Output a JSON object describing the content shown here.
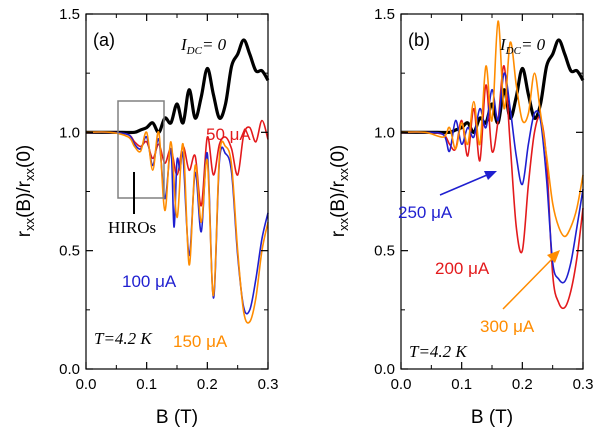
{
  "chart_data": [
    {
      "panel": "(a)",
      "type": "line",
      "xlabel": "B (T)",
      "ylabel": "r_xx(B)/r_xx(0)",
      "xlim": [
        0.0,
        0.3
      ],
      "ylim": [
        0.0,
        1.5
      ],
      "xticks": [
        "0.0",
        "0.1",
        "0.2",
        "0.3"
      ],
      "yticks": [
        "0.0",
        "0.5",
        "1.0",
        "1.5"
      ],
      "annotations": {
        "idc": "I",
        "idc_sub": "DC",
        "idc_rest": "= 0",
        "temp": "T=4.2 K",
        "hiros": "HIROs",
        "i50": "50 μA",
        "i100": "100 μA",
        "i150": "150 μA"
      },
      "series": [
        {
          "name": "I_DC = 0",
          "color": "#000000",
          "x": [
            0.0,
            0.02,
            0.04,
            0.06,
            0.08,
            0.09,
            0.1,
            0.11,
            0.12,
            0.13,
            0.14,
            0.15,
            0.16,
            0.17,
            0.18,
            0.19,
            0.2,
            0.21,
            0.22,
            0.23,
            0.24,
            0.25,
            0.26,
            0.27,
            0.28,
            0.29,
            0.3
          ],
          "y": [
            1.0,
            1.0,
            1.0,
            1.0,
            1.0,
            1.01,
            1.02,
            1.04,
            1.0,
            1.06,
            1.04,
            1.12,
            1.04,
            1.18,
            1.06,
            1.15,
            1.27,
            1.16,
            1.06,
            1.12,
            1.28,
            1.33,
            1.39,
            1.33,
            1.26,
            1.26,
            1.22
          ]
        },
        {
          "name": "50 μA",
          "color": "#e31a1c",
          "x": [
            0.0,
            0.04,
            0.07,
            0.08,
            0.09,
            0.1,
            0.11,
            0.12,
            0.13,
            0.14,
            0.15,
            0.16,
            0.17,
            0.18,
            0.19,
            0.2,
            0.21,
            0.22,
            0.23,
            0.24,
            0.25,
            0.26,
            0.27,
            0.28,
            0.29,
            0.3
          ],
          "y": [
            1.0,
            1.0,
            0.99,
            0.96,
            0.94,
            0.96,
            0.89,
            0.95,
            0.87,
            0.93,
            0.82,
            0.94,
            0.84,
            0.9,
            0.69,
            0.98,
            0.82,
            0.95,
            0.98,
            0.93,
            0.82,
            0.99,
            1.02,
            0.96,
            1.05,
            0.97
          ]
        },
        {
          "name": "100 μA",
          "color": "#1f1fd0",
          "x": [
            0.0,
            0.04,
            0.07,
            0.08,
            0.09,
            0.1,
            0.11,
            0.12,
            0.13,
            0.14,
            0.145,
            0.15,
            0.155,
            0.16,
            0.17,
            0.18,
            0.19,
            0.2,
            0.21,
            0.22,
            0.23,
            0.24,
            0.25,
            0.26,
            0.27,
            0.28,
            0.29,
            0.3
          ],
          "y": [
            1.0,
            1.0,
            0.99,
            0.95,
            0.93,
            0.98,
            0.86,
            0.97,
            0.72,
            0.93,
            0.6,
            0.88,
            0.84,
            0.9,
            0.48,
            0.83,
            0.58,
            0.91,
            0.3,
            0.88,
            0.91,
            0.83,
            0.48,
            0.26,
            0.25,
            0.38,
            0.55,
            0.66
          ]
        },
        {
          "name": "150 μA",
          "color": "#ff8c00",
          "x": [
            0.0,
            0.04,
            0.07,
            0.08,
            0.09,
            0.1,
            0.11,
            0.12,
            0.13,
            0.14,
            0.15,
            0.16,
            0.17,
            0.18,
            0.19,
            0.2,
            0.21,
            0.22,
            0.23,
            0.24,
            0.25,
            0.26,
            0.27,
            0.28,
            0.29,
            0.3
          ],
          "y": [
            1.0,
            1.0,
            0.98,
            0.94,
            0.92,
            1.0,
            0.84,
            1.0,
            0.67,
            0.96,
            0.64,
            0.95,
            0.44,
            0.86,
            0.62,
            0.88,
            0.31,
            0.9,
            0.94,
            0.86,
            0.5,
            0.24,
            0.2,
            0.3,
            0.5,
            0.62
          ]
        }
      ]
    },
    {
      "panel": "(b)",
      "type": "line",
      "xlabel": "B (T)",
      "ylabel": "r_xx(B)/r_xx(0)",
      "xlim": [
        0.0,
        0.3
      ],
      "ylim": [
        0.0,
        1.5
      ],
      "xticks": [
        "0.0",
        "0.1",
        "0.2",
        "0.3"
      ],
      "yticks": [
        "0.0",
        "0.5",
        "1.0",
        "1.5"
      ],
      "annotations": {
        "idc": "I",
        "idc_sub": "DC",
        "idc_rest": "= 0",
        "temp": "T=4.2 K",
        "i200": "200 μA",
        "i250": "250 μA",
        "i300": "300 μA"
      },
      "series": [
        {
          "name": "I_DC = 0",
          "color": "#000000",
          "x": [
            0.0,
            0.02,
            0.04,
            0.06,
            0.08,
            0.09,
            0.1,
            0.11,
            0.12,
            0.13,
            0.14,
            0.15,
            0.16,
            0.17,
            0.18,
            0.19,
            0.2,
            0.21,
            0.22,
            0.23,
            0.24,
            0.25,
            0.26,
            0.27,
            0.28,
            0.29,
            0.3
          ],
          "y": [
            1.0,
            1.0,
            1.0,
            1.0,
            1.0,
            1.01,
            1.02,
            1.04,
            1.0,
            1.06,
            1.04,
            1.12,
            1.04,
            1.18,
            1.06,
            1.15,
            1.27,
            1.16,
            1.06,
            1.12,
            1.28,
            1.33,
            1.39,
            1.33,
            1.26,
            1.26,
            1.22
          ]
        },
        {
          "name": "200 μA",
          "color": "#e31a1c",
          "x": [
            0.0,
            0.04,
            0.07,
            0.08,
            0.09,
            0.1,
            0.11,
            0.12,
            0.13,
            0.14,
            0.15,
            0.16,
            0.17,
            0.18,
            0.19,
            0.2,
            0.21,
            0.22,
            0.23,
            0.24,
            0.25,
            0.26,
            0.27,
            0.28,
            0.29,
            0.3
          ],
          "y": [
            1.0,
            1.0,
            0.99,
            0.95,
            0.93,
            1.05,
            0.9,
            1.1,
            0.88,
            1.2,
            0.92,
            1.05,
            1.28,
            0.95,
            0.6,
            0.5,
            0.78,
            1.0,
            1.06,
            0.88,
            0.4,
            0.28,
            0.26,
            0.33,
            0.47,
            0.68
          ]
        },
        {
          "name": "250 μA",
          "color": "#1f1fd0",
          "x": [
            0.0,
            0.04,
            0.07,
            0.08,
            0.09,
            0.1,
            0.11,
            0.12,
            0.13,
            0.14,
            0.15,
            0.16,
            0.17,
            0.18,
            0.19,
            0.2,
            0.21,
            0.22,
            0.23,
            0.24,
            0.25,
            0.26,
            0.27,
            0.28,
            0.29,
            0.3
          ],
          "y": [
            1.0,
            1.0,
            0.99,
            0.92,
            1.05,
            0.95,
            1.02,
            0.98,
            1.1,
            1.02,
            1.18,
            1.05,
            1.25,
            1.1,
            0.9,
            0.78,
            0.95,
            1.08,
            1.05,
            0.8,
            0.45,
            0.38,
            0.37,
            0.45,
            0.6,
            0.76
          ]
        },
        {
          "name": "300 μA",
          "color": "#ff8c00",
          "x": [
            0.0,
            0.04,
            0.07,
            0.08,
            0.09,
            0.1,
            0.11,
            0.12,
            0.13,
            0.14,
            0.15,
            0.16,
            0.17,
            0.18,
            0.19,
            0.2,
            0.21,
            0.22,
            0.23,
            0.24,
            0.25,
            0.26,
            0.27,
            0.28,
            0.29,
            0.3
          ],
          "y": [
            1.0,
            1.0,
            0.98,
            1.02,
            0.93,
            1.04,
            0.95,
            1.13,
            0.95,
            1.28,
            1.05,
            1.47,
            1.1,
            1.38,
            1.2,
            1.05,
            1.08,
            1.25,
            1.08,
            0.9,
            0.7,
            0.6,
            0.56,
            0.6,
            0.68,
            0.82
          ]
        }
      ]
    }
  ]
}
